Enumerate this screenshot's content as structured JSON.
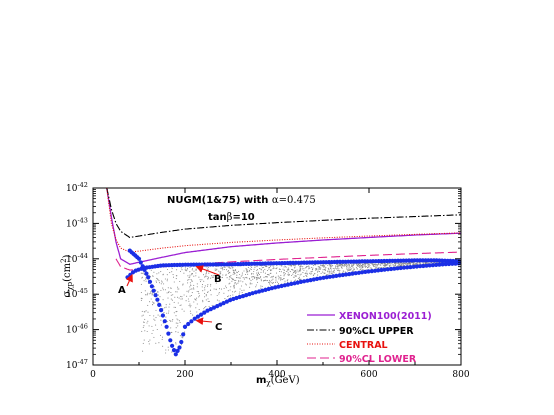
{
  "colors": {
    "xenon": "#9b1fd3",
    "upper": "#000000",
    "central": "#e8110f",
    "lower": "#e0238f",
    "points": "#1b2fe6",
    "scan": "#8a8a8a",
    "arrow": "#e8110f"
  },
  "chart_data": {
    "type": "scatter",
    "title": "NUGM(1&75) with α=0.475",
    "subtitle": "tanβ=10",
    "title_parts": {
      "bold": "NUGM(1&75) with ",
      "serif": "α=0.475"
    },
    "subtitle_parts": {
      "bold": "tan",
      "symbol": "β",
      "rest": "=10"
    },
    "xlabel_main": "m",
    "xlabel_sub": "χ",
    "xlabel_unit": "(GeV)",
    "ylabel_main": "σ",
    "ylabel_sub": "χp",
    "ylabel_unit": "(cm",
    "ylabel_sup": "2",
    "ylabel_close": ")",
    "xlim": [
      0,
      800
    ],
    "ylim": [
      1e-47,
      1e-42
    ],
    "yscale": "log",
    "xticks": [
      0,
      200,
      400,
      600,
      800
    ],
    "xtick_labels": [
      "0",
      "200",
      "400",
      "600",
      "800"
    ],
    "yticks_exp": [
      -47,
      -46,
      -45,
      -44,
      -43,
      -42
    ],
    "ytick_labels": [
      "10",
      "10",
      "10",
      "10",
      "10",
      "10"
    ],
    "ytick_exps": [
      "-47",
      "-46",
      "-45",
      "-44",
      "-43",
      "-42"
    ],
    "legend_position": "bottom-right",
    "series": [
      {
        "name": "XENON100(2011)",
        "style": "solid",
        "x": [
          30,
          40,
          50,
          60,
          80,
          100,
          150,
          200,
          300,
          400,
          500,
          600,
          700,
          800
        ],
        "y": [
          1e-42,
          1.5e-43,
          3e-44,
          1e-44,
          7e-45,
          8e-45,
          1.1e-44,
          1.5e-44,
          2.2e-44,
          2.8e-44,
          3.4e-44,
          4e-44,
          4.7e-44,
          5.3e-44
        ]
      },
      {
        "name": "90%CL UPPER",
        "style": "dashdot",
        "x": [
          30,
          40,
          50,
          60,
          80,
          100,
          150,
          200,
          300,
          400,
          500,
          600,
          700,
          800
        ],
        "y": [
          1e-42,
          2.5e-43,
          1e-43,
          6e-44,
          4e-44,
          4.4e-44,
          5.6e-44,
          6.9e-44,
          8.8e-44,
          1.05e-43,
          1.22e-43,
          1.4e-43,
          1.56e-43,
          1.75e-43
        ]
      },
      {
        "name": "CENTRAL",
        "style": "dotted",
        "x": [
          30,
          40,
          50,
          60,
          80,
          100,
          150,
          200,
          300,
          400,
          500,
          600,
          700,
          800
        ],
        "y": [
          1e-42,
          1e-43,
          3.5e-44,
          2e-44,
          1.55e-44,
          1.65e-44,
          2e-44,
          2.35e-44,
          2.9e-44,
          3.4e-44,
          3.9e-44,
          4.4e-44,
          4.9e-44,
          5.4e-44
        ]
      },
      {
        "name": "90%CL LOWER",
        "style": "longdash",
        "x": [
          50,
          60,
          80,
          100,
          150,
          200,
          300,
          400,
          500,
          600,
          700,
          800
        ],
        "y": [
          1e-44,
          6e-45,
          4.8e-45,
          5.1e-45,
          5.9e-45,
          6.8e-45,
          8.2e-45,
          9.6e-45,
          1.1e-44,
          1.25e-44,
          1.4e-44,
          1.55e-44
        ]
      }
    ],
    "blue_branches": [
      {
        "x": [
          80,
          100,
          120,
          140,
          150,
          160,
          170,
          180,
          190,
          200
        ],
        "y": [
          1.7e-44,
          1e-44,
          3e-45,
          7e-46,
          3e-46,
          1.2e-46,
          4e-47,
          2e-47,
          3.5e-47,
          1.2e-46
        ]
      },
      {
        "x": [
          75,
          90,
          110,
          150,
          200,
          300,
          400,
          500,
          600,
          700,
          750,
          800
        ],
        "y": [
          3e-45,
          4.5e-45,
          5.5e-45,
          6.5e-45,
          6.8e-45,
          7e-45,
          7.5e-45,
          8e-45,
          8.5e-45,
          9e-45,
          9e-45,
          8.5e-45
        ]
      },
      {
        "x": [
          200,
          220,
          250,
          300,
          350,
          400,
          450,
          500,
          550,
          600,
          650,
          700,
          750,
          800
        ],
        "y": [
          1.2e-46,
          2e-46,
          3.5e-46,
          7e-46,
          1.1e-45,
          1.6e-45,
          2.2e-45,
          2.9e-45,
          3.6e-45,
          4.4e-45,
          5.2e-45,
          6e-45,
          6.8e-45,
          7.5e-45
        ]
      }
    ],
    "annotations": [
      {
        "label": "A",
        "target": [
          85,
          3.5e-45
        ]
      },
      {
        "label": "B",
        "target": [
          225,
          6e-45
        ]
      },
      {
        "label": "C",
        "target": [
          225,
          1.8e-46
        ]
      }
    ]
  }
}
